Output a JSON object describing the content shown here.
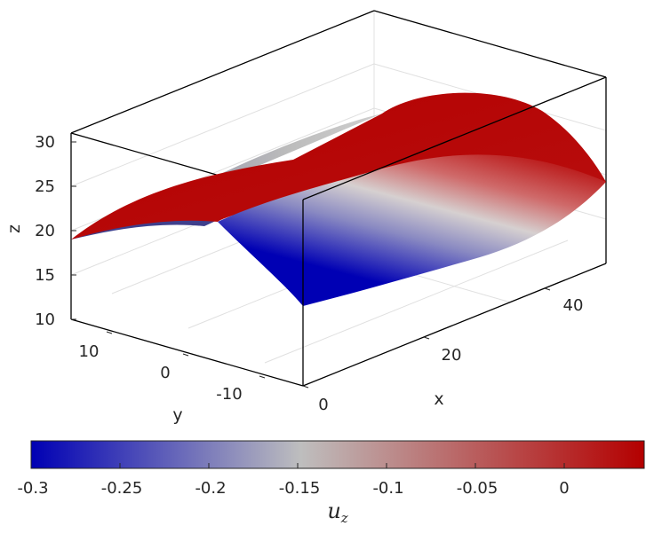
{
  "chart_data": {
    "type": "surface",
    "title": "",
    "xlabel": "x",
    "ylabel": "y",
    "zlabel": "z",
    "xlim": [
      0,
      50
    ],
    "ylim": [
      -15,
      15
    ],
    "zlim": [
      10,
      30
    ],
    "x_ticks": [
      "0",
      "20",
      "40"
    ],
    "y_ticks": [
      "10",
      "0",
      "-10"
    ],
    "z_ticks": [
      "30",
      "25",
      "20",
      "15",
      "10"
    ],
    "surface": {
      "description": "cylindrical shell arch spanning y in [-15,15], extruded along x in [0,50]",
      "z_at_edges": 19,
      "z_at_crown": 28
    },
    "colorbar": {
      "label_main": "u",
      "label_sub": "z",
      "ticks": [
        "-0.3",
        "-0.25",
        "-0.2",
        "-0.15",
        "-0.1",
        "-0.05",
        "0"
      ],
      "range": [
        -0.3,
        0.045
      ],
      "colors": {
        "low": "#0000b4",
        "mid": "#bebebe",
        "high": "#b40000"
      }
    },
    "grid": true
  }
}
